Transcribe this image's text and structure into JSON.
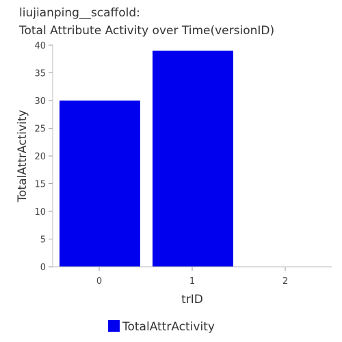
{
  "chart_data": {
    "type": "bar",
    "title": "liujianping__scaffold:",
    "subtitle": "Total Attribute Activity over Time(versionID)",
    "xlabel": "trID",
    "ylabel": "TotalAttrActivity",
    "categories": [
      "0",
      "1",
      "2"
    ],
    "series": [
      {
        "name": "TotalAttrActivity",
        "values": [
          30,
          39,
          0
        ],
        "color": "#0000ee"
      }
    ],
    "ylim": [
      0,
      40
    ],
    "yticks": [
      "0",
      "5",
      "10",
      "15",
      "20",
      "25",
      "30",
      "35",
      "40"
    ],
    "grid": false,
    "legend_position": "bottom-center"
  }
}
